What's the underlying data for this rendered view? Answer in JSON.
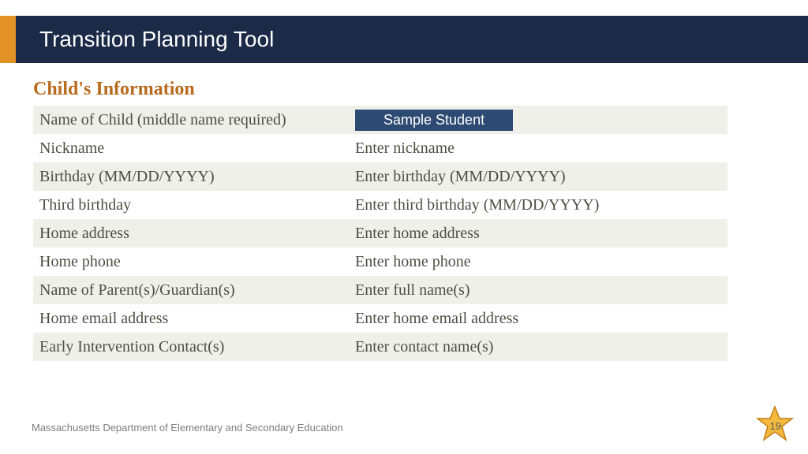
{
  "header": {
    "title": "Transition Planning Tool"
  },
  "section": {
    "heading": "Child's Information"
  },
  "form": {
    "rows": [
      {
        "label": "Name of Child (middle name required)",
        "value": "Sample Student",
        "is_sample_badge": true
      },
      {
        "label": "Nickname",
        "value": "Enter nickname"
      },
      {
        "label": "Birthday (MM/DD/YYYY)",
        "value": "Enter birthday (MM/DD/YYYY)"
      },
      {
        "label": "Third birthday",
        "value": "Enter third birthday (MM/DD/YYYY)"
      },
      {
        "label": "Home address",
        "value": "Enter home address"
      },
      {
        "label": "Home phone",
        "value": "Enter home phone"
      },
      {
        "label": "Name of Parent(s)/Guardian(s)",
        "value": "Enter full name(s)"
      },
      {
        "label": "Home email address",
        "value": "Enter home email address"
      },
      {
        "label": "Early Intervention Contact(s)",
        "value": "Enter contact name(s)"
      }
    ]
  },
  "footer": {
    "text": "Massachusetts Department of Elementary and Secondary Education",
    "page_number": "19"
  },
  "colors": {
    "header_bg": "#1b2a47",
    "accent": "#e39226",
    "heading": "#b86a1c",
    "row_odd": "#eef0e9",
    "row_even": "#ffffff",
    "text": "#4e4e45",
    "sample_bg": "#2d4a72",
    "star_fill": "#f3b93f",
    "star_stroke": "#c47d14"
  }
}
